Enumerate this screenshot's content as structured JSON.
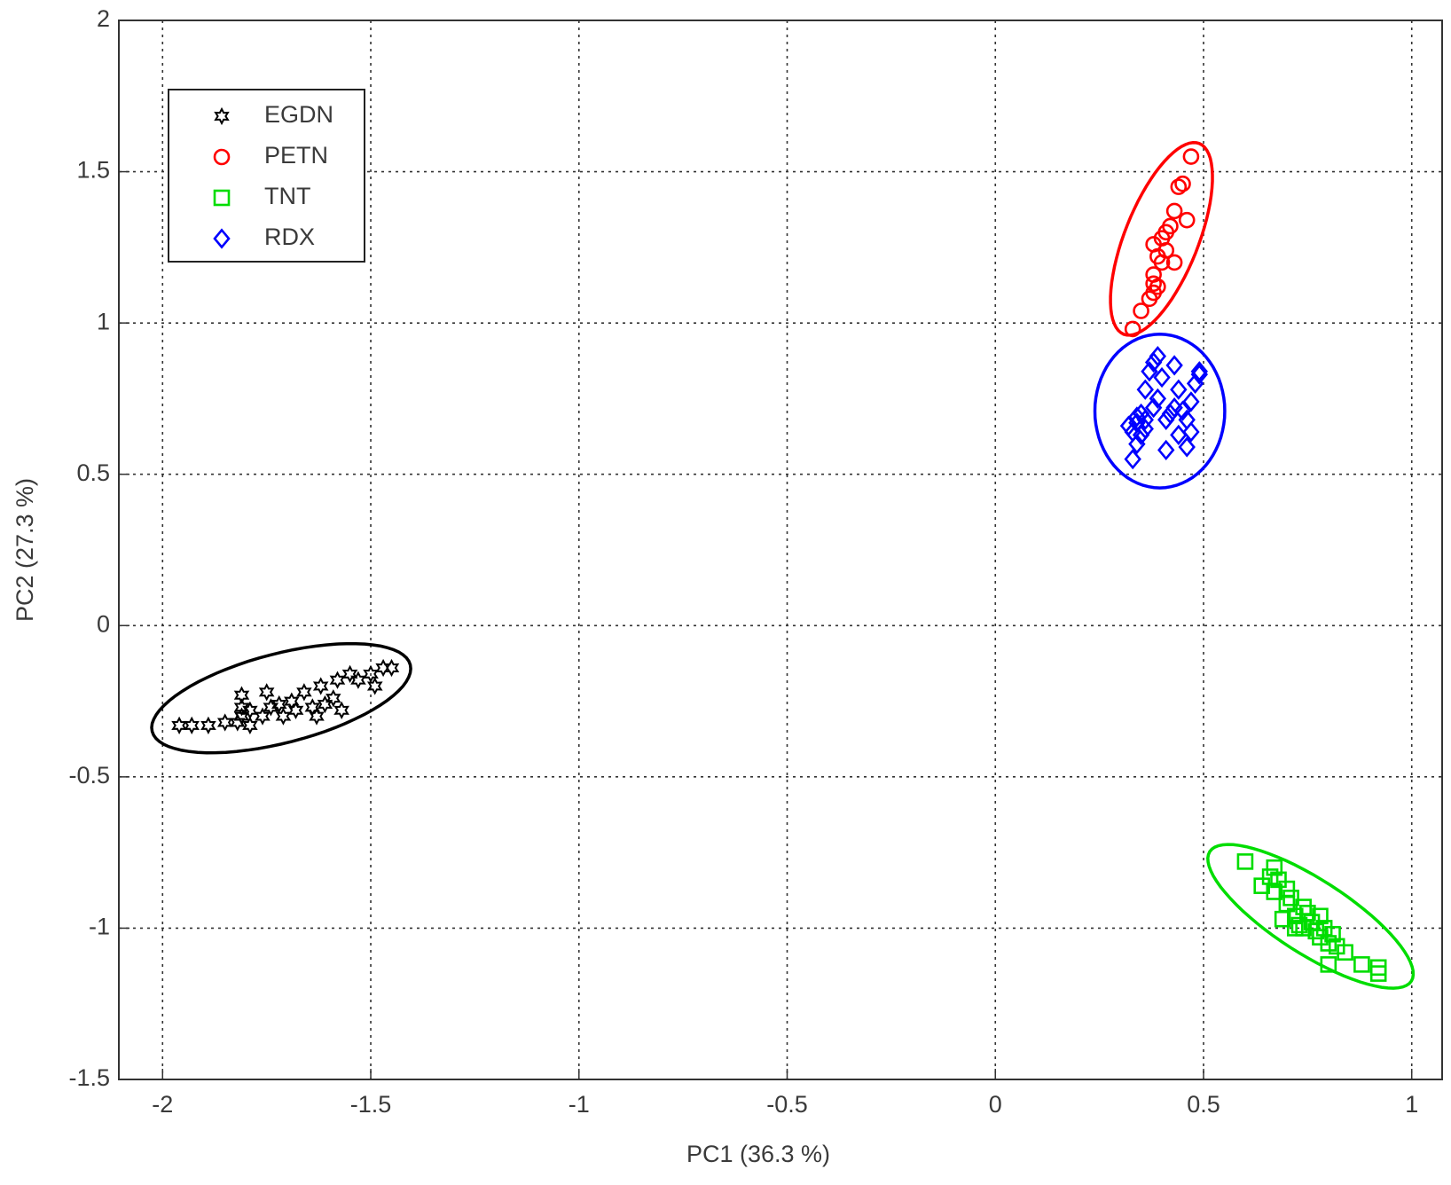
{
  "chart_data": {
    "type": "scatter",
    "x_label": "PC1 (36.3 %)",
    "y_label": "PC2 (27.3 %)",
    "xlim": [
      -2.105,
      1.073
    ],
    "ylim": [
      -1.5,
      2
    ],
    "xticks": [
      -2,
      -1.5,
      -1,
      -0.5,
      0,
      0.5,
      1
    ],
    "yticks": [
      -1.5,
      -1,
      -0.5,
      0,
      0.5,
      1,
      1.5,
      2
    ],
    "grid": true,
    "legend": "upper left",
    "series": [
      {
        "name": "EGDN",
        "color": "#000000",
        "marker": "hexagram",
        "x": [
          -1.96,
          -1.93,
          -1.89,
          -1.85,
          -1.82,
          -1.81,
          -1.81,
          -1.81,
          -1.79,
          -1.79,
          -1.76,
          -1.75,
          -1.74,
          -1.72,
          -1.71,
          -1.69,
          -1.68,
          -1.66,
          -1.64,
          -1.62,
          -1.61,
          -1.59,
          -1.58,
          -1.55,
          -1.53,
          -1.5,
          -1.49,
          -1.47,
          -1.45,
          -1.63,
          -1.57
        ],
        "values": [
          -0.33,
          -0.33,
          -0.33,
          -0.32,
          -0.32,
          -0.3,
          -0.27,
          -0.23,
          -0.33,
          -0.28,
          -0.3,
          -0.22,
          -0.27,
          -0.26,
          -0.3,
          -0.25,
          -0.28,
          -0.22,
          -0.27,
          -0.2,
          -0.26,
          -0.24,
          -0.18,
          -0.16,
          -0.18,
          -0.16,
          -0.2,
          -0.14,
          -0.14,
          -0.3,
          -0.28
        ],
        "ellipse": {
          "center": [
            -1.715,
            -0.24
          ],
          "u": [
            0.31,
            0.11
          ],
          "v": [
            0.026,
            -0.143
          ]
        }
      },
      {
        "name": "PETN",
        "color": "#ff0000",
        "marker": "circle",
        "x": [
          0.33,
          0.35,
          0.37,
          0.38,
          0.38,
          0.38,
          0.39,
          0.38,
          0.4,
          0.41,
          0.41,
          0.42,
          0.43,
          0.43,
          0.44,
          0.45,
          0.46,
          0.47,
          0.39,
          0.4
        ],
        "values": [
          0.98,
          1.04,
          1.08,
          1.1,
          1.13,
          1.16,
          1.22,
          1.26,
          1.28,
          1.24,
          1.3,
          1.32,
          1.2,
          1.37,
          1.45,
          1.46,
          1.34,
          1.55,
          1.12,
          1.2
        ],
        "ellipse": {
          "center": [
            0.399,
            1.278
          ],
          "u": [
            0.091,
            0.315
          ],
          "v": [
            0.082,
            -0.046
          ]
        }
      },
      {
        "name": "TNT",
        "color": "#00dd00",
        "marker": "square",
        "x": [
          0.6,
          0.64,
          0.66,
          0.67,
          0.67,
          0.68,
          0.69,
          0.7,
          0.7,
          0.71,
          0.72,
          0.73,
          0.74,
          0.74,
          0.75,
          0.76,
          0.77,
          0.78,
          0.79,
          0.8,
          0.8,
          0.81,
          0.82,
          0.84,
          0.88,
          0.92,
          0.92,
          0.72,
          0.78
        ],
        "values": [
          -0.78,
          -0.86,
          -0.83,
          -0.8,
          -0.88,
          -0.84,
          -0.97,
          -0.87,
          -0.92,
          -0.9,
          -0.96,
          -0.99,
          -0.93,
          -1.0,
          -0.95,
          -0.98,
          -1.01,
          -1.03,
          -1.0,
          -1.05,
          -1.12,
          -1.02,
          -1.06,
          -1.08,
          -1.12,
          -1.15,
          -1.13,
          -1.0,
          -0.96
        ],
        "ellipse": {
          "center": [
            0.757,
            -0.961
          ],
          "u": [
            0.242,
            -0.214
          ],
          "v": [
            0.048,
            0.103
          ]
        }
      },
      {
        "name": "RDX",
        "color": "#0000ff",
        "marker": "diamond",
        "x": [
          0.32,
          0.33,
          0.33,
          0.34,
          0.34,
          0.35,
          0.35,
          0.36,
          0.36,
          0.37,
          0.38,
          0.38,
          0.39,
          0.39,
          0.4,
          0.41,
          0.41,
          0.42,
          0.43,
          0.43,
          0.44,
          0.44,
          0.45,
          0.46,
          0.46,
          0.47,
          0.47,
          0.48,
          0.49,
          0.49,
          0.36,
          0.34
        ],
        "values": [
          0.66,
          0.55,
          0.64,
          0.6,
          0.67,
          0.7,
          0.63,
          0.68,
          0.78,
          0.84,
          0.72,
          0.87,
          0.89,
          0.75,
          0.82,
          0.58,
          0.68,
          0.7,
          0.86,
          0.72,
          0.63,
          0.78,
          0.71,
          0.59,
          0.68,
          0.64,
          0.74,
          0.8,
          0.84,
          0.83,
          0.65,
          0.69
        ],
        "ellipse": {
          "center": [
            0.395,
            0.709
          ],
          "u": [
            0.156,
            0
          ],
          "v": [
            0,
            0.254
          ]
        }
      }
    ]
  }
}
